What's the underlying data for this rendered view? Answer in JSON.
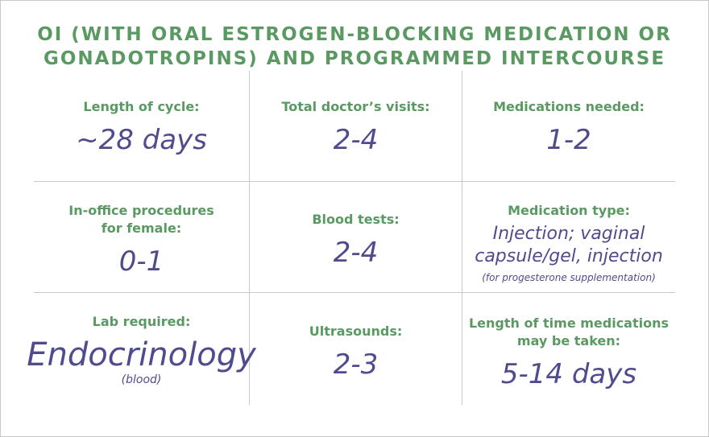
{
  "title": {
    "line1": "OI (WITH ORAL ESTROGEN-BLOCKING MEDICATION OR",
    "line2": "GONADOTROPINS) AND PROGRAMMED INTERCOURSE"
  },
  "cells": {
    "cycle_length": {
      "label": "Length of cycle:",
      "value": "~28 days"
    },
    "doctor_visits": {
      "label": "Total doctor’s visits:",
      "value": "2-4"
    },
    "medications_needed": {
      "label": "Medications needed:",
      "value": "1-2"
    },
    "in_office_procedures": {
      "label_line1": "In-office procedures",
      "label_line2": "for female:",
      "value": "0-1"
    },
    "blood_tests": {
      "label": "Blood tests:",
      "value": "2-4"
    },
    "medication_type": {
      "label": "Medication type:",
      "value_line1": "Injection; vaginal",
      "value_line2": "capsule/gel, injection",
      "note": "(for progesterone supplementation)"
    },
    "lab_required": {
      "label": "Lab required:",
      "value": "Endocrinology",
      "note": "(blood)"
    },
    "ultrasounds": {
      "label": "Ultrasounds:",
      "value": "2-3"
    },
    "medication_duration": {
      "label_line1": "Length of time medications",
      "label_line2": "may be taken:",
      "value": "5-14 days"
    }
  },
  "colors": {
    "label_green": "#5a9a62",
    "value_purple": "#4f4b8e",
    "grid": "#c9c9c9"
  }
}
